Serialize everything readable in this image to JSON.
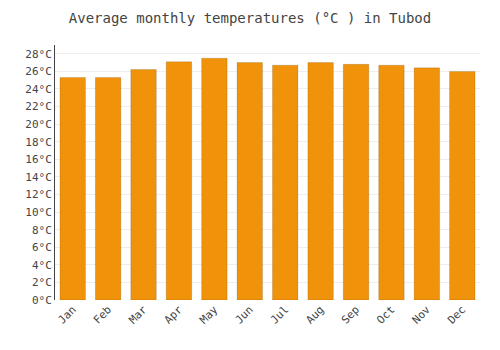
{
  "chart_data": {
    "type": "bar",
    "title": "Average monthly temperatures (°C ) in Tubod",
    "categories": [
      "Jan",
      "Feb",
      "Mar",
      "Apr",
      "May",
      "Jun",
      "Jul",
      "Aug",
      "Sep",
      "Oct",
      "Nov",
      "Dec"
    ],
    "values": [
      25.3,
      25.3,
      26.2,
      27.1,
      27.5,
      27.0,
      26.7,
      27.0,
      26.8,
      26.7,
      26.4,
      26.0
    ],
    "color": "#F0920A",
    "ylim": [
      0,
      29
    ],
    "yticks": [
      {
        "value": 0,
        "label": "0°C"
      },
      {
        "value": 2,
        "label": "2°C"
      },
      {
        "value": 4,
        "label": "4°C"
      },
      {
        "value": 6,
        "label": "6°C"
      },
      {
        "value": 8,
        "label": "8°C"
      },
      {
        "value": 10,
        "label": "10°C"
      },
      {
        "value": 12,
        "label": "12°C"
      },
      {
        "value": 14,
        "label": "14°C"
      },
      {
        "value": 16,
        "label": "16°C"
      },
      {
        "value": 18,
        "label": "18°C"
      },
      {
        "value": 20,
        "label": "20°C"
      },
      {
        "value": 22,
        "label": "22°C"
      },
      {
        "value": 24,
        "label": "24°C"
      },
      {
        "value": 26,
        "label": "26°C"
      },
      {
        "value": 28,
        "label": "28°C"
      }
    ],
    "grid": true
  }
}
